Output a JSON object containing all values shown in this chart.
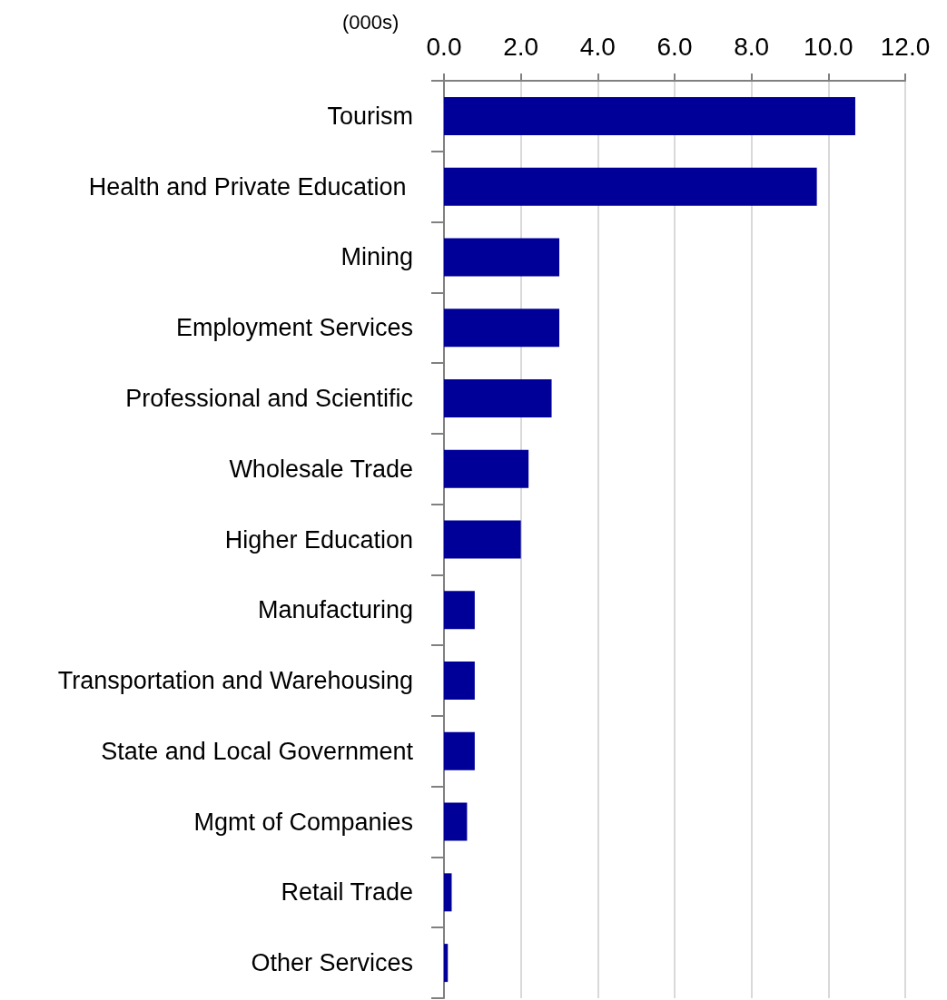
{
  "chart_data": {
    "type": "bar",
    "orientation": "horizontal",
    "xlabel": "(000s)",
    "categories": [
      "Tourism",
      "Health and Private Education ",
      "Mining",
      "Employment Services",
      "Professional and Scientific",
      "Wholesale Trade",
      "Higher Education",
      "Manufacturing",
      "Transportation and Warehousing",
      "State and Local Government",
      "Mgmt of Companies",
      "Retail Trade",
      "Other Services"
    ],
    "values": [
      10.7,
      9.7,
      3.0,
      3.0,
      2.8,
      2.2,
      2.0,
      0.8,
      0.8,
      0.8,
      0.6,
      0.2,
      0.1
    ],
    "color": "#000099",
    "xlim": [
      0,
      12
    ],
    "xticks": [
      {
        "value": 0,
        "label": "0.0"
      },
      {
        "value": 2,
        "label": "2.0"
      },
      {
        "value": 4,
        "label": "4.0"
      },
      {
        "value": 6,
        "label": "6.0"
      },
      {
        "value": 8,
        "label": "8.0"
      },
      {
        "value": 10,
        "label": "10.0"
      },
      {
        "value": 12,
        "label": "12.0"
      }
    ],
    "grid": "x"
  }
}
